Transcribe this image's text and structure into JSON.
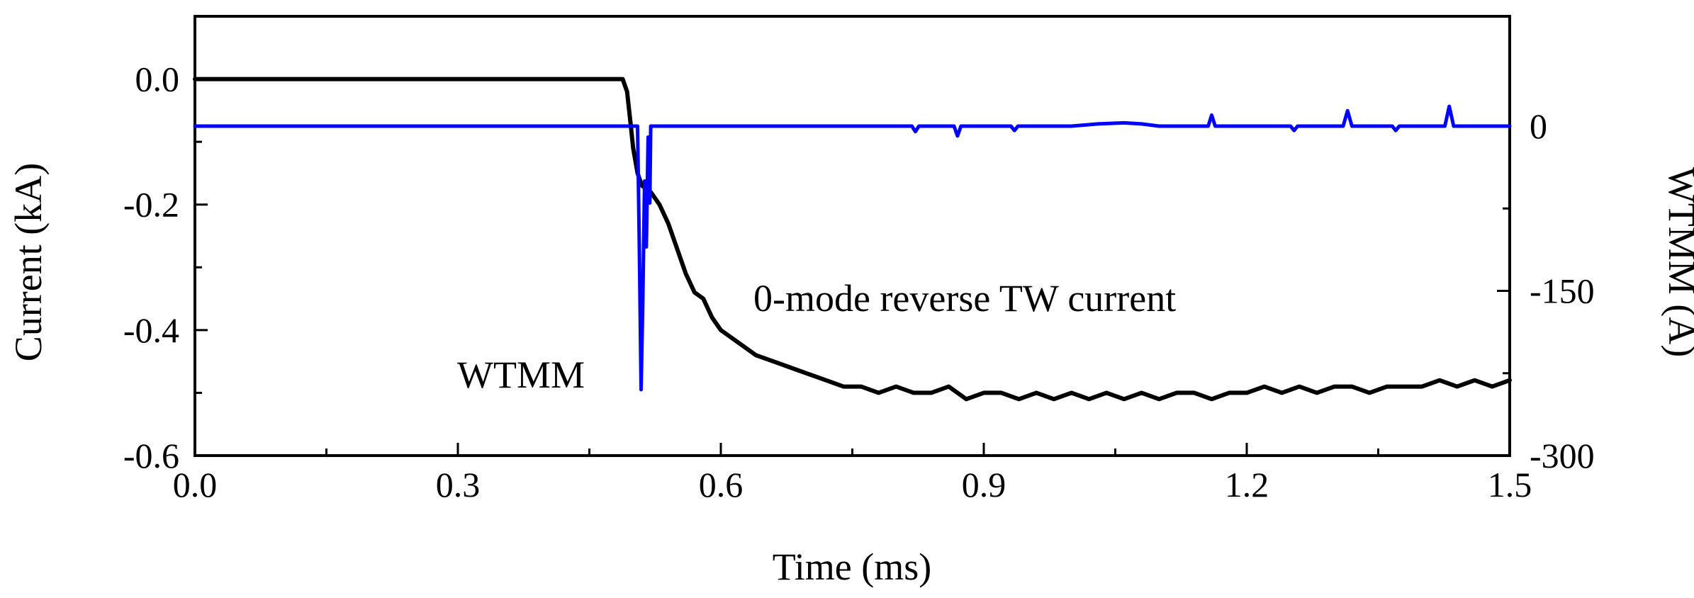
{
  "chart_data": {
    "type": "line",
    "title": "",
    "xlabel": "Time (ms)",
    "ylabel": "Current (kA)",
    "y2label": "WTMM (A)",
    "xlim": [
      0.0,
      1.5
    ],
    "ylim": [
      -0.6,
      0.1
    ],
    "y2lim": [
      -300,
      100
    ],
    "x_ticks": [
      "0.0",
      "0.3",
      "0.6",
      "0.9",
      "1.2",
      "1.5"
    ],
    "y_ticks": [
      "0.0",
      "-0.2",
      "-0.4",
      "-0.6"
    ],
    "y2_ticks": [
      "0",
      "-150",
      "-300"
    ],
    "grid": false,
    "annotations": [
      "WTMM",
      "0-mode reverse TW current"
    ],
    "series": [
      {
        "name": "0-mode reverse TW current",
        "axis": "left",
        "color": "#000000",
        "x": [
          0.0,
          0.1,
          0.2,
          0.3,
          0.4,
          0.488,
          0.493,
          0.497,
          0.5,
          0.505,
          0.51,
          0.52,
          0.53,
          0.54,
          0.55,
          0.56,
          0.57,
          0.58,
          0.59,
          0.6,
          0.62,
          0.64,
          0.66,
          0.68,
          0.7,
          0.72,
          0.74,
          0.76,
          0.78,
          0.8,
          0.82,
          0.84,
          0.86,
          0.88,
          0.9,
          0.92,
          0.94,
          0.96,
          0.98,
          1.0,
          1.02,
          1.04,
          1.06,
          1.08,
          1.1,
          1.12,
          1.14,
          1.16,
          1.18,
          1.2,
          1.22,
          1.24,
          1.26,
          1.28,
          1.3,
          1.32,
          1.34,
          1.36,
          1.38,
          1.4,
          1.42,
          1.44,
          1.46,
          1.48,
          1.5
        ],
        "values": [
          0.0,
          0.0,
          0.0,
          0.0,
          0.0,
          0.0,
          -0.02,
          -0.07,
          -0.11,
          -0.15,
          -0.17,
          -0.18,
          -0.2,
          -0.23,
          -0.27,
          -0.31,
          -0.34,
          -0.35,
          -0.38,
          -0.4,
          -0.42,
          -0.44,
          -0.45,
          -0.46,
          -0.47,
          -0.48,
          -0.49,
          -0.49,
          -0.5,
          -0.49,
          -0.5,
          -0.5,
          -0.49,
          -0.51,
          -0.5,
          -0.5,
          -0.51,
          -0.5,
          -0.51,
          -0.5,
          -0.51,
          -0.5,
          -0.51,
          -0.5,
          -0.51,
          -0.5,
          -0.5,
          -0.51,
          -0.5,
          -0.5,
          -0.49,
          -0.5,
          -0.49,
          -0.5,
          -0.49,
          -0.49,
          -0.5,
          -0.49,
          -0.49,
          -0.49,
          -0.48,
          -0.49,
          -0.48,
          -0.49,
          -0.48
        ]
      },
      {
        "name": "WTMM",
        "axis": "right",
        "color": "#0000ff",
        "x": [
          0.0,
          0.5,
          0.505,
          0.507,
          0.509,
          0.511,
          0.513,
          0.515,
          0.517,
          0.519,
          0.52,
          0.818,
          0.822,
          0.826,
          0.866,
          0.87,
          0.874,
          0.931,
          0.935,
          0.939,
          1.0,
          1.03,
          1.06,
          1.08,
          1.1,
          1.156,
          1.16,
          1.164,
          1.25,
          1.254,
          1.258,
          1.31,
          1.315,
          1.32,
          1.366,
          1.37,
          1.374,
          1.426,
          1.431,
          1.436,
          1.5
        ],
        "values": [
          0,
          0,
          0,
          -110,
          -240,
          -160,
          -50,
          -110,
          -10,
          -70,
          0,
          0,
          -5,
          0,
          0,
          -9,
          0,
          0,
          -4,
          0,
          0,
          2,
          3,
          2,
          0,
          0,
          10,
          0,
          0,
          -4,
          0,
          0,
          14,
          0,
          0,
          -4,
          0,
          0,
          18,
          0,
          0
        ]
      }
    ]
  }
}
